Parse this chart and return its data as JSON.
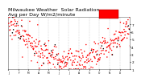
{
  "title": "Milwaukee Weather  Solar Radiation",
  "subtitle": "Avg per Day W/m2/minute",
  "title_fontsize": 4.5,
  "bg_color": "#ffffff",
  "plot_bg_color": "#ffffff",
  "grid_color": "#bbbbbb",
  "y_min": 0,
  "y_max": 700,
  "y_ticks": [
    100,
    200,
    300,
    400,
    500,
    600,
    700
  ],
  "y_tick_labels": [
    "7",
    "6",
    "5",
    "4",
    "3",
    "2",
    "1"
  ],
  "x_min": 0,
  "x_max": 365,
  "dot_color_red": "#ff0000",
  "dot_color_black": "#000000",
  "highlight_rect_color": "#ff0000",
  "month_starts": [
    0,
    31,
    59,
    90,
    120,
    151,
    181,
    212,
    243,
    273,
    304,
    334
  ],
  "months_short": [
    "J",
    "F",
    "M",
    "A",
    "M",
    "J",
    "J",
    "A",
    "S",
    "O",
    "N",
    "D"
  ],
  "dot_size": 1.2,
  "black_dot_prob": 0.06,
  "random_seed": 17
}
